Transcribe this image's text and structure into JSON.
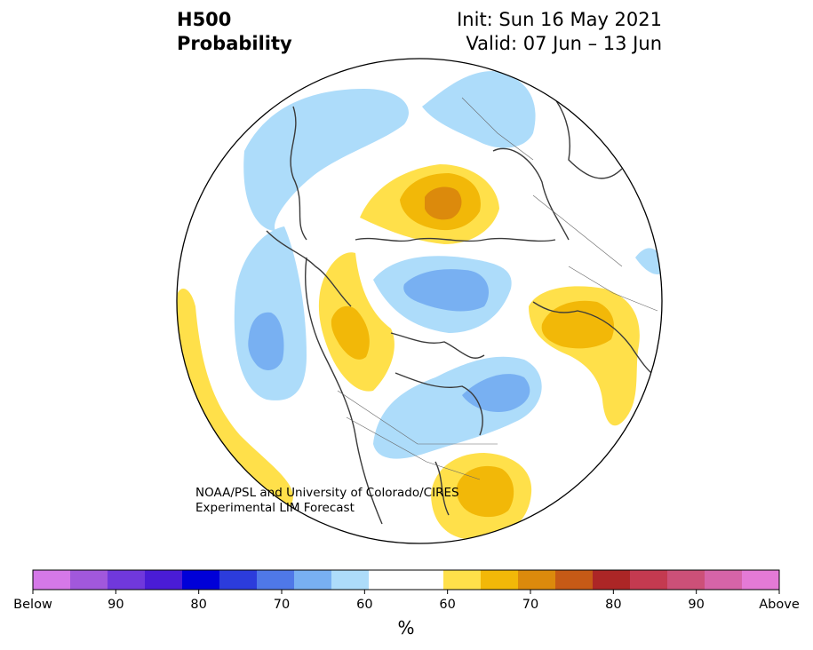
{
  "header": {
    "variable": "H500",
    "product": "Probability",
    "init": "Init: Sun 16 May 2021",
    "valid": "Valid: 07 Jun – 13 Jun"
  },
  "credit": {
    "line1": "NOAA/PSL and University of Colorado/CIRES",
    "line2": "Experimental LIM Forecast"
  },
  "colorbar": {
    "unit": "%",
    "colors": [
      "#d578e8",
      "#a158dc",
      "#7038dc",
      "#4a1cd6",
      "#0000d8",
      "#2c3cdc",
      "#4f78e8",
      "#78b0f2",
      "#addcfa",
      "#ffffff",
      "#ffffff",
      "#ffe04a",
      "#f2b808",
      "#dc8a0c",
      "#c65a16",
      "#ac2626",
      "#c43a50",
      "#cc5078",
      "#d664a8",
      "#e47ad6"
    ],
    "labels": [
      "Below",
      "90",
      "80",
      "70",
      "60",
      "60",
      "70",
      "80",
      "90",
      "Above"
    ]
  },
  "map": {
    "projection": "north-polar-stereographic",
    "palette": {
      "light_blue": "#addcfa",
      "blue": "#78b0f2",
      "yellow": "#ffe04a",
      "gold": "#f2b808",
      "orange": "#dc8a0c",
      "dark_orange": "#c65a16",
      "land_outline": "#3a3a3a"
    }
  }
}
